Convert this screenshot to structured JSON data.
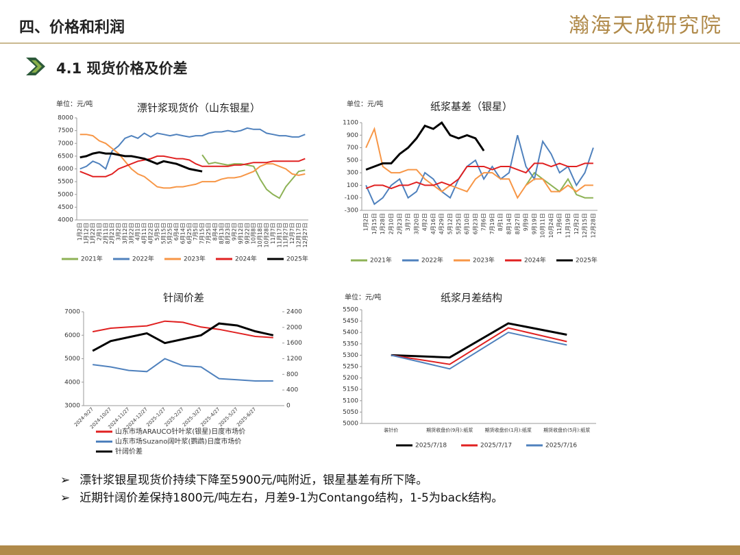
{
  "header": {
    "title": "四、价格和利润",
    "logo": "瀚海天成研究院"
  },
  "section": "4.1 现货价格及价差",
  "bullets": [
    "漂针浆银星现货价持续下降至5900元/吨附近，银星基差有所下降。",
    "近期针阔价差保持1800元/吨左右，月差9-1为Contango结构，1-5为back结构。"
  ],
  "chart_data": [
    {
      "type": "line",
      "title": "漂针浆现货价（山东银星）",
      "unit": "单位：元/吨",
      "categories": [
        "1月2日",
        "1月12日",
        "1月22日",
        "2月1日",
        "2月11日",
        "2月21日",
        "3月2日",
        "3月12日",
        "3月22日",
        "4月1日",
        "4月11日",
        "4月22日",
        "5月5日",
        "5月15日",
        "5月25日",
        "6月4日",
        "6月14日",
        "6月25日",
        "7月5日",
        "7月15日",
        "7月25日",
        "8月4日",
        "8月13日",
        "8月23日",
        "9月2日",
        "9月12日",
        "9月22日",
        "10月8日",
        "10月18日",
        "10月28日",
        "11月7日",
        "11月17日",
        "11月27日",
        "12月7日",
        "12月17日",
        "12月27日"
      ],
      "ylim": [
        4000,
        8000
      ],
      "yticks": [
        4000,
        4500,
        5000,
        5500,
        6000,
        6500,
        7000,
        7500,
        8000
      ],
      "series": [
        {
          "name": "2021年",
          "color": "#8db255",
          "values": [
            null,
            null,
            null,
            null,
            null,
            null,
            null,
            null,
            null,
            null,
            null,
            null,
            null,
            null,
            null,
            null,
            null,
            null,
            null,
            6550,
            6200,
            6250,
            6200,
            6150,
            6200,
            6200,
            6150,
            6100,
            5600,
            5200,
            5000,
            4850,
            5300,
            5600,
            5900,
            5950
          ]
        },
        {
          "name": "2022年",
          "color": "#4f81bd",
          "values": [
            6000,
            6100,
            6300,
            6200,
            6000,
            6700,
            6900,
            7200,
            7300,
            7200,
            7400,
            7250,
            7400,
            7350,
            7300,
            7350,
            7300,
            7250,
            7300,
            7300,
            7400,
            7450,
            7450,
            7500,
            7450,
            7500,
            7600,
            7550,
            7550,
            7400,
            7350,
            7300,
            7300,
            7250,
            7250,
            7350
          ]
        },
        {
          "name": "2023年",
          "color": "#f79646",
          "values": [
            7350,
            7350,
            7300,
            7100,
            7000,
            6800,
            6600,
            6300,
            6000,
            5800,
            5700,
            5500,
            5300,
            5250,
            5250,
            5300,
            5300,
            5350,
            5400,
            5500,
            5500,
            5500,
            5600,
            5650,
            5650,
            5700,
            5800,
            5900,
            6100,
            6200,
            6200,
            6100,
            6000,
            5800,
            5750,
            5800
          ]
        },
        {
          "name": "2024年",
          "color": "#e02020",
          "values": [
            5900,
            5800,
            5700,
            5700,
            5700,
            5800,
            6000,
            6100,
            6200,
            6300,
            6350,
            6400,
            6500,
            6500,
            6450,
            6400,
            6400,
            6350,
            6200,
            6100,
            6100,
            6100,
            6100,
            6100,
            6150,
            6150,
            6200,
            6250,
            6250,
            6250,
            6300,
            6300,
            6300,
            6300,
            6300,
            6400
          ]
        },
        {
          "name": "2025年",
          "color": "#000000",
          "values": [
            6450,
            6500,
            6600,
            6650,
            6600,
            6600,
            6550,
            6500,
            6500,
            6450,
            6400,
            6300,
            6200,
            6300,
            6250,
            6200,
            6100,
            6000,
            5950,
            5900,
            null,
            null,
            null,
            null,
            null,
            null,
            null,
            null,
            null,
            null,
            null,
            null,
            null,
            null,
            null,
            null
          ]
        }
      ]
    },
    {
      "type": "line",
      "title": "纸浆基差（银星）",
      "unit": "单位：元/吨",
      "categories": [
        "1月2日",
        "1月15日",
        "1月28日",
        "2月10日",
        "2月23日",
        "3月7日",
        "3月20日",
        "4月2日",
        "4月16日",
        "4月29日",
        "5月12日",
        "5月25日",
        "6月10日",
        "6月23日",
        "7月6日",
        "7月19日",
        "8月1日",
        "8月14日",
        "8月27日",
        "9月9日",
        "9月19日",
        "10月11日",
        "10月24日",
        "11月6日",
        "11月19日",
        "12月2日",
        "12月15日",
        "12月28日"
      ],
      "ylim": [
        -300,
        1100
      ],
      "yticks": [
        -300,
        -100,
        100,
        300,
        500,
        700,
        900,
        1100
      ],
      "series": [
        {
          "name": "2021年",
          "color": "#8db255",
          "values": [
            null,
            null,
            null,
            null,
            null,
            null,
            null,
            null,
            null,
            null,
            null,
            null,
            null,
            null,
            null,
            null,
            null,
            null,
            null,
            100,
            300,
            200,
            100,
            0,
            200,
            -50,
            -100,
            -100
          ]
        },
        {
          "name": "2022年",
          "color": "#4f81bd",
          "values": [
            100,
            -200,
            -100,
            100,
            200,
            -100,
            0,
            300,
            200,
            0,
            -100,
            200,
            400,
            500,
            200,
            400,
            200,
            300,
            900,
            400,
            200,
            800,
            600,
            300,
            400,
            100,
            300,
            700
          ]
        },
        {
          "name": "2023年",
          "color": "#f79646",
          "values": [
            700,
            1000,
            400,
            300,
            300,
            350,
            350,
            200,
            100,
            0,
            100,
            50,
            0,
            200,
            300,
            300,
            200,
            200,
            -100,
            100,
            200,
            200,
            0,
            0,
            100,
            0,
            100,
            100
          ]
        },
        {
          "name": "2024年",
          "color": "#e02020",
          "values": [
            50,
            100,
            100,
            50,
            100,
            100,
            150,
            100,
            100,
            150,
            100,
            200,
            400,
            400,
            400,
            350,
            400,
            400,
            350,
            300,
            450,
            450,
            400,
            450,
            400,
            400,
            450,
            450
          ]
        },
        {
          "name": "2025年",
          "color": "#000000",
          "values": [
            350,
            400,
            450,
            450,
            600,
            700,
            850,
            1050,
            1000,
            1100,
            900,
            850,
            900,
            850,
            650,
            null,
            null,
            null,
            null,
            null,
            null,
            null,
            null,
            null,
            null,
            null,
            null,
            null
          ]
        }
      ]
    },
    {
      "type": "line",
      "title": "针阔价差",
      "categories": [
        "2024-9/27",
        "2024-10/27",
        "2024-11/27",
        "2024-12/27",
        "2025-1/27",
        "2025-2/27",
        "2025-3/27",
        "2025-4/27",
        "2025-5/27",
        "2025-6/27",
        null
      ],
      "ylim": [
        3000,
        7000
      ],
      "yticks": [
        3000,
        4000,
        5000,
        6000,
        7000
      ],
      "y2lim": [
        0,
        2400
      ],
      "y2ticks": [
        0,
        400,
        800,
        1200,
        1600,
        2000,
        2400
      ],
      "series": [
        {
          "name": "山东市场ARAUCO针叶浆(银星)日度市场价",
          "color": "#e02020",
          "values": [
            6150,
            6300,
            6350,
            6400,
            6600,
            6550,
            6350,
            6250,
            6100,
            5950,
            5900
          ]
        },
        {
          "name": "山东市场Suzano阔叶浆(鹦鹉)日度市场价",
          "color": "#4f81bd",
          "values": [
            4750,
            4650,
            4500,
            4450,
            5000,
            4700,
            4650,
            4150,
            4100,
            4050,
            4050
          ]
        },
        {
          "name": "针阔价差",
          "color": "#000000",
          "axis": "y2",
          "values": [
            1400,
            1650,
            1750,
            1850,
            1600,
            1700,
            1800,
            2100,
            2050,
            1900,
            1800
          ]
        }
      ]
    },
    {
      "type": "line",
      "title": "纸浆月差结构",
      "unit": "单位：元/吨",
      "categories": [
        "装针价",
        "期货收盘价(9月):纸浆",
        "期货收盘价(1月):纸浆",
        "期货收盘价(5月):纸浆"
      ],
      "ylim": [
        5000,
        5500
      ],
      "yticks": [
        5000,
        5050,
        5100,
        5150,
        5200,
        5250,
        5300,
        5350,
        5400,
        5450,
        5500
      ],
      "series": [
        {
          "name": "2025/7/18",
          "color": "#000000",
          "values": [
            5300,
            5290,
            5440,
            5390
          ]
        },
        {
          "name": "2025/7/17",
          "color": "#e02020",
          "values": [
            5300,
            5260,
            5420,
            5360
          ]
        },
        {
          "name": "2025/7/16",
          "color": "#4f81bd",
          "values": [
            5300,
            5240,
            5400,
            5345
          ]
        }
      ]
    }
  ]
}
